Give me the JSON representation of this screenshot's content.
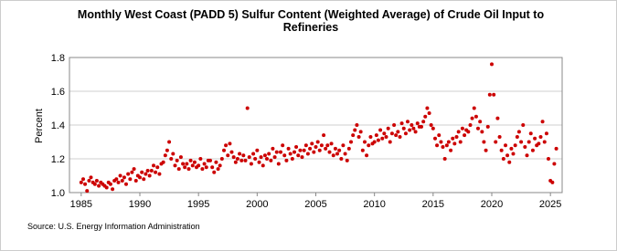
{
  "chart_data": {
    "type": "scatter",
    "title": "Monthly West Coast (PADD 5) Sulfur Content (Weighted Average) of Crude Oil Input to Refineries",
    "y_label": "Percent",
    "source": "Source: U.S. Energy Information Administration",
    "color": "#cc0000",
    "xlim": [
      1984,
      2026
    ],
    "ylim": [
      1.0,
      1.8
    ],
    "xticks": [
      1985,
      1990,
      1995,
      2000,
      2005,
      2010,
      2015,
      2020,
      2025
    ],
    "yticks": [
      {
        "value": 1.0,
        "label": "1.0"
      },
      {
        "value": 1.2,
        "label": "1.2"
      },
      {
        "value": 1.4,
        "label": "1.4"
      },
      {
        "value": 1.6,
        "label": "1.6"
      },
      {
        "value": 1.8,
        "label": "1.8"
      }
    ],
    "grid": true,
    "x": [
      1985.0,
      1985.17,
      1985.33,
      1985.5,
      1985.67,
      1985.83,
      1986.0,
      1986.17,
      1986.33,
      1986.5,
      1986.67,
      1986.83,
      1987.0,
      1987.17,
      1987.33,
      1987.5,
      1987.67,
      1987.83,
      1988.0,
      1988.17,
      1988.33,
      1988.5,
      1988.67,
      1988.83,
      1989.0,
      1989.17,
      1989.33,
      1989.5,
      1989.67,
      1989.83,
      1990.0,
      1990.17,
      1990.33,
      1990.5,
      1990.67,
      1990.83,
      1991.0,
      1991.17,
      1991.33,
      1991.5,
      1991.67,
      1991.83,
      1992.0,
      1992.17,
      1992.33,
      1992.5,
      1992.67,
      1992.83,
      1993.0,
      1993.17,
      1993.33,
      1993.5,
      1993.67,
      1993.83,
      1994.0,
      1994.17,
      1994.33,
      1994.5,
      1994.67,
      1994.83,
      1995.0,
      1995.17,
      1995.33,
      1995.5,
      1995.67,
      1995.83,
      1996.0,
      1996.17,
      1996.33,
      1996.5,
      1996.67,
      1996.83,
      1997.0,
      1997.17,
      1997.33,
      1997.5,
      1997.67,
      1997.83,
      1998.0,
      1998.17,
      1998.33,
      1998.5,
      1998.67,
      1998.83,
      1999.0,
      1999.17,
      1999.33,
      1999.5,
      1999.67,
      1999.83,
      2000.0,
      2000.17,
      2000.33,
      2000.5,
      2000.67,
      2000.83,
      2001.0,
      2001.17,
      2001.33,
      2001.5,
      2001.67,
      2001.83,
      2002.0,
      2002.17,
      2002.33,
      2002.5,
      2002.67,
      2002.83,
      2003.0,
      2003.17,
      2003.33,
      2003.5,
      2003.67,
      2003.83,
      2004.0,
      2004.17,
      2004.33,
      2004.5,
      2004.67,
      2004.83,
      2005.0,
      2005.17,
      2005.33,
      2005.5,
      2005.67,
      2005.83,
      2006.0,
      2006.17,
      2006.33,
      2006.5,
      2006.67,
      2006.83,
      2007.0,
      2007.17,
      2007.33,
      2007.5,
      2007.67,
      2007.83,
      2008.0,
      2008.17,
      2008.33,
      2008.5,
      2008.67,
      2008.83,
      2009.0,
      2009.17,
      2009.33,
      2009.5,
      2009.67,
      2009.83,
      2010.0,
      2010.17,
      2010.33,
      2010.5,
      2010.67,
      2010.83,
      2011.0,
      2011.17,
      2011.33,
      2011.5,
      2011.67,
      2011.83,
      2012.0,
      2012.17,
      2012.33,
      2012.5,
      2012.67,
      2012.83,
      2013.0,
      2013.17,
      2013.33,
      2013.5,
      2013.67,
      2013.83,
      2014.0,
      2014.17,
      2014.33,
      2014.5,
      2014.67,
      2014.83,
      2015.0,
      2015.17,
      2015.33,
      2015.5,
      2015.67,
      2015.83,
      2016.0,
      2016.17,
      2016.33,
      2016.5,
      2016.67,
      2016.83,
      2017.0,
      2017.17,
      2017.33,
      2017.5,
      2017.67,
      2017.83,
      2018.0,
      2018.17,
      2018.33,
      2018.5,
      2018.67,
      2018.83,
      2019.0,
      2019.17,
      2019.33,
      2019.5,
      2019.67,
      2019.83,
      2020.0,
      2020.17,
      2020.33,
      2020.5,
      2020.67,
      2020.83,
      2021.0,
      2021.17,
      2021.33,
      2021.5,
      2021.67,
      2021.83,
      2022.0,
      2022.17,
      2022.33,
      2022.5,
      2022.67,
      2022.83,
      2023.0,
      2023.17,
      2023.33,
      2023.5,
      2023.67,
      2023.83,
      2024.0,
      2024.17,
      2024.33,
      2024.5,
      2024.67,
      2024.83,
      2025.0,
      2025.17,
      2025.33,
      2025.5
    ],
    "values": [
      1.06,
      1.08,
      1.05,
      1.01,
      1.07,
      1.09,
      1.06,
      1.05,
      1.07,
      1.04,
      1.06,
      1.05,
      1.04,
      1.03,
      1.06,
      1.05,
      1.02,
      1.07,
      1.08,
      1.06,
      1.1,
      1.07,
      1.09,
      1.05,
      1.11,
      1.08,
      1.12,
      1.14,
      1.07,
      1.1,
      1.09,
      1.12,
      1.08,
      1.11,
      1.13,
      1.1,
      1.13,
      1.16,
      1.12,
      1.15,
      1.11,
      1.17,
      1.18,
      1.22,
      1.25,
      1.3,
      1.2,
      1.23,
      1.16,
      1.19,
      1.14,
      1.21,
      1.17,
      1.15,
      1.17,
      1.14,
      1.19,
      1.16,
      1.18,
      1.15,
      1.16,
      1.2,
      1.14,
      1.17,
      1.15,
      1.19,
      1.19,
      1.15,
      1.12,
      1.18,
      1.14,
      1.16,
      1.2,
      1.25,
      1.28,
      1.22,
      1.29,
      1.24,
      1.21,
      1.18,
      1.2,
      1.23,
      1.19,
      1.22,
      1.19,
      1.5,
      1.21,
      1.17,
      1.23,
      1.2,
      1.25,
      1.18,
      1.21,
      1.16,
      1.22,
      1.2,
      1.23,
      1.19,
      1.26,
      1.21,
      1.24,
      1.17,
      1.24,
      1.28,
      1.22,
      1.19,
      1.26,
      1.23,
      1.2,
      1.24,
      1.27,
      1.22,
      1.25,
      1.21,
      1.25,
      1.28,
      1.23,
      1.26,
      1.29,
      1.24,
      1.27,
      1.3,
      1.25,
      1.28,
      1.34,
      1.26,
      1.28,
      1.24,
      1.29,
      1.22,
      1.26,
      1.23,
      1.25,
      1.2,
      1.28,
      1.23,
      1.19,
      1.26,
      1.3,
      1.34,
      1.37,
      1.4,
      1.33,
      1.36,
      1.25,
      1.3,
      1.22,
      1.28,
      1.33,
      1.29,
      1.3,
      1.34,
      1.31,
      1.37,
      1.32,
      1.35,
      1.33,
      1.38,
      1.3,
      1.35,
      1.4,
      1.34,
      1.36,
      1.33,
      1.41,
      1.38,
      1.35,
      1.42,
      1.37,
      1.4,
      1.38,
      1.36,
      1.41,
      1.39,
      1.39,
      1.42,
      1.45,
      1.5,
      1.47,
      1.4,
      1.38,
      1.32,
      1.28,
      1.34,
      1.3,
      1.27,
      1.2,
      1.28,
      1.3,
      1.25,
      1.32,
      1.29,
      1.33,
      1.36,
      1.3,
      1.38,
      1.34,
      1.37,
      1.36,
      1.4,
      1.44,
      1.5,
      1.45,
      1.38,
      1.42,
      1.36,
      1.3,
      1.25,
      1.39,
      1.58,
      1.76,
      1.58,
      1.3,
      1.44,
      1.33,
      1.25,
      1.2,
      1.28,
      1.22,
      1.18,
      1.26,
      1.23,
      1.28,
      1.33,
      1.36,
      1.3,
      1.4,
      1.27,
      1.22,
      1.3,
      1.35,
      1.25,
      1.32,
      1.28,
      1.29,
      1.33,
      1.42,
      1.3,
      1.35,
      1.2,
      1.07,
      1.06,
      1.17,
      1.26
    ]
  }
}
